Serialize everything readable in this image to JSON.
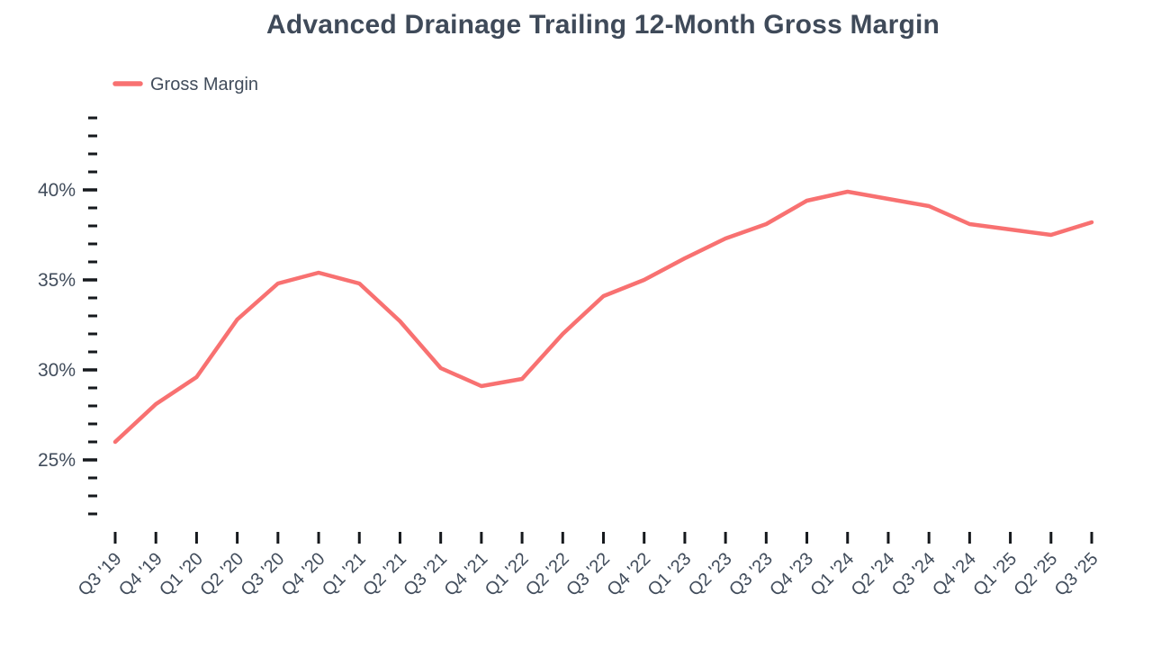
{
  "chart_data": {
    "type": "line",
    "title": "Advanced Drainage Trailing 12-Month Gross Margin",
    "legend": {
      "position": "top-left",
      "entries": [
        "Gross Margin"
      ]
    },
    "categories": [
      "Q3 '19",
      "Q4 '19",
      "Q1 '20",
      "Q2 '20",
      "Q3 '20",
      "Q4 '20",
      "Q1 '21",
      "Q2 '21",
      "Q3 '21",
      "Q4 '21",
      "Q1 '22",
      "Q2 '22",
      "Q3 '22",
      "Q4 '22",
      "Q1 '23",
      "Q2 '23",
      "Q3 '23",
      "Q4 '23",
      "Q1 '24",
      "Q2 '24",
      "Q3 '24",
      "Q4 '24",
      "Q1 '25",
      "Q2 '25",
      "Q3 '25"
    ],
    "series": [
      {
        "name": "Gross Margin",
        "color": "#f87171",
        "values": [
          26.0,
          28.1,
          29.6,
          32.8,
          34.8,
          35.4,
          34.8,
          32.7,
          30.1,
          29.1,
          29.5,
          32.0,
          34.1,
          35.0,
          36.2,
          37.3,
          38.1,
          39.4,
          39.9,
          39.5,
          39.1,
          38.1,
          37.8,
          37.5,
          38.2
        ]
      }
    ],
    "y_axis": {
      "unit": "%",
      "min": 22,
      "max": 44,
      "minor_tick_step": 1,
      "labeled_ticks": [
        25,
        30,
        35,
        40
      ]
    },
    "x_axis": {
      "label_rotation_deg": -45
    },
    "grid": false,
    "colors": {
      "line": "#f87171",
      "text": "#414c5b",
      "tick": "#16191d",
      "background": "#ffffff"
    }
  }
}
